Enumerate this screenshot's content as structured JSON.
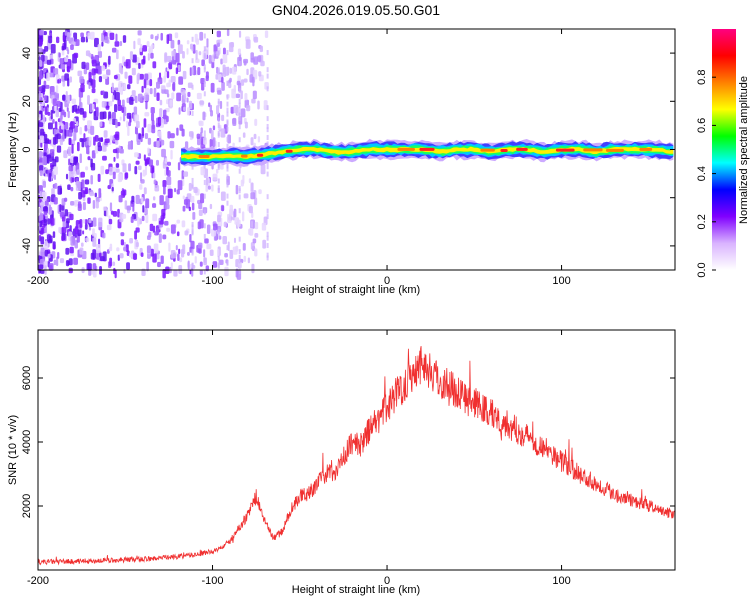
{
  "figure": {
    "title": "GN04.2026.019.05.50.G01"
  },
  "chart_data": [
    {
      "type": "heatmap",
      "title": "GN04.2026.019.05.50.G01",
      "xlabel": "Height of straight line (km)",
      "ylabel": "Frequency (Hz)",
      "xlim": [
        -200,
        165
      ],
      "ylim": [
        -50,
        50
      ],
      "x_ticks": [
        -200,
        -100,
        0,
        100
      ],
      "y_ticks": [
        -40,
        -20,
        0,
        20,
        40
      ],
      "colorbar": {
        "label": "Normalized spectral amplitude",
        "range": [
          0,
          1
        ],
        "ticks": [
          0.0,
          0.2,
          0.4,
          0.6,
          0.8
        ],
        "tick_labels": [
          "0.0",
          "0.2",
          "0.4",
          "0.6",
          "0.8"
        ],
        "colors": [
          "#ffffff",
          "#d9b3ff",
          "#8000ff",
          "#0000ff",
          "#00ffff",
          "#00ff00",
          "#ffff00",
          "#ff8000",
          "#ff0000",
          "#ff0080"
        ]
      },
      "ridge": {
        "x": [
          -118,
          -110,
          -100,
          -90,
          -80,
          -70,
          -60,
          -50,
          -40,
          -30,
          -20,
          -10,
          0,
          10,
          20,
          30,
          40,
          50,
          60,
          70,
          80,
          90,
          100,
          110,
          120,
          130,
          140,
          150,
          165
        ],
        "frequency": [
          -3,
          -3,
          -3,
          -2.5,
          -3,
          -2,
          -1,
          0,
          0,
          -1,
          -1,
          0,
          0,
          0,
          0,
          -1,
          0,
          0,
          -1,
          0,
          0,
          -1,
          0,
          0,
          -1,
          0,
          0,
          0,
          -1
        ]
      },
      "noise_region": {
        "x_range": [
          -200,
          -70
        ],
        "frequency_range": [
          -50,
          50
        ]
      }
    },
    {
      "type": "line",
      "xlabel": "Height of straight line (km)",
      "ylabel": "SNR (10 * v/v)",
      "xlim": [
        -200,
        165
      ],
      "ylim": [
        0,
        7500
      ],
      "x_ticks": [
        -200,
        -100,
        0,
        100
      ],
      "y_ticks": [
        2000,
        4000,
        6000
      ],
      "color": "#f03030",
      "series": [
        {
          "x": [
            -200,
            -190,
            -180,
            -170,
            -160,
            -150,
            -140,
            -130,
            -120,
            -110,
            -100,
            -95,
            -90,
            -85,
            -80,
            -75,
            -70,
            -65,
            -60,
            -55,
            -50,
            -45,
            -40,
            -35,
            -30,
            -25,
            -20,
            -15,
            -10,
            -5,
            0,
            5,
            10,
            15,
            20,
            25,
            30,
            35,
            40,
            45,
            50,
            60,
            70,
            80,
            90,
            100,
            110,
            120,
            130,
            140,
            150,
            160,
            165
          ],
          "y": [
            250,
            260,
            270,
            280,
            300,
            320,
            340,
            380,
            420,
            480,
            580,
            700,
            900,
            1300,
            1700,
            2300,
            1500,
            1000,
            1200,
            1900,
            2300,
            2400,
            2700,
            3000,
            3100,
            3500,
            4000,
            3900,
            4400,
            4700,
            5100,
            5500,
            5800,
            6200,
            6500,
            6200,
            5900,
            5800,
            5600,
            5400,
            5200,
            4900,
            4500,
            4200,
            3800,
            3400,
            3000,
            2700,
            2400,
            2200,
            2000,
            1800,
            1700
          ]
        }
      ]
    }
  ]
}
